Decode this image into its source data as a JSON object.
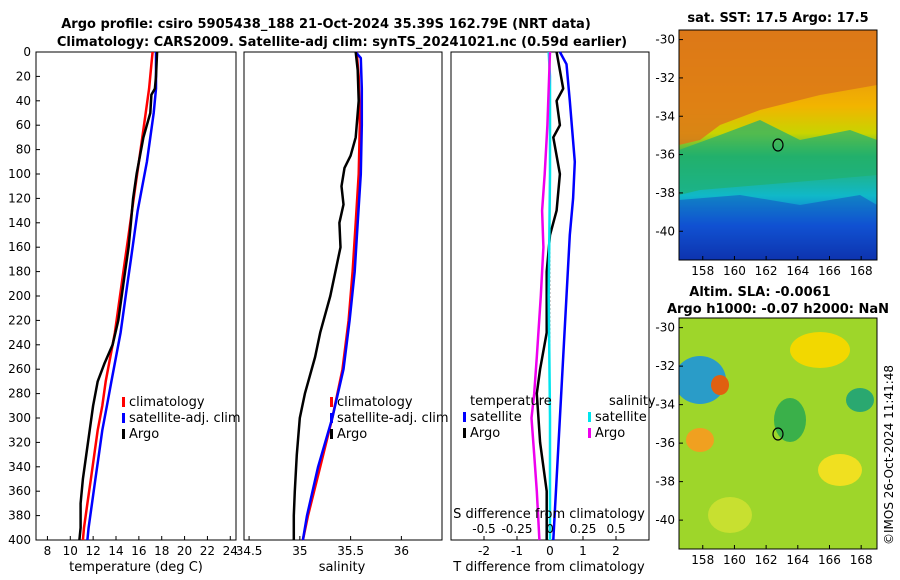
{
  "header": {
    "title_line1": "Argo profile: csiro 5905438_188 21-Oct-2024 35.39S 162.79E (NRT data)",
    "title_line2": "Climatology: CARS2009. Satellite-adj clim: synTS_20241021.nc (0.59d earlier)"
  },
  "map_titles": {
    "sst": "sat. SST: 17.5 Argo: 17.5",
    "sla_line1": "Altim. SLA: -0.0061",
    "sla_line2": "Argo h1000: -0.07 h2000: NaN"
  },
  "watermark": "©IMOS 26-Oct-2024 11:41:48",
  "colors": {
    "climatology": "#ff0000",
    "satellite": "#0000ff",
    "argo": "#000000",
    "sat_salinity": "#00e5ee",
    "argo_salinity": "#ee00ee"
  },
  "chart_data": [
    {
      "type": "line",
      "name": "temperature",
      "xlabel": "temperature (deg C)",
      "ylabel": "",
      "xlim": [
        7,
        24.5
      ],
      "ylim": [
        400,
        0
      ],
      "xticks": [
        "8",
        "10",
        "12",
        "14",
        "16",
        "18",
        "20",
        "22",
        "24"
      ],
      "yticks": [
        "0",
        "20",
        "40",
        "60",
        "80",
        "100",
        "120",
        "140",
        "160",
        "180",
        "200",
        "220",
        "240",
        "260",
        "280",
        "300",
        "320",
        "340",
        "360",
        "380",
        "400"
      ],
      "legend": [
        "climatology",
        "satellite-adj. clim",
        "Argo"
      ],
      "series": [
        {
          "name": "climatology",
          "points": [
            [
              17.2,
              0
            ],
            [
              17.1,
              10
            ],
            [
              16.9,
              30
            ],
            [
              16.6,
              50
            ],
            [
              16.3,
              70
            ],
            [
              16.0,
              90
            ],
            [
              15.7,
              110
            ],
            [
              15.4,
              130
            ],
            [
              15.1,
              150
            ],
            [
              14.8,
              170
            ],
            [
              14.5,
              190
            ],
            [
              14.2,
              210
            ],
            [
              13.9,
              230
            ],
            [
              13.5,
              250
            ],
            [
              13.1,
              270
            ],
            [
              12.8,
              290
            ],
            [
              12.4,
              310
            ],
            [
              12.1,
              330
            ],
            [
              11.8,
              350
            ],
            [
              11.5,
              370
            ],
            [
              11.2,
              390
            ],
            [
              11.1,
              400
            ]
          ]
        },
        {
          "name": "satellite-adj. clim",
          "points": [
            [
              17.5,
              0
            ],
            [
              17.5,
              10
            ],
            [
              17.5,
              30
            ],
            [
              17.3,
              50
            ],
            [
              17.0,
              70
            ],
            [
              16.7,
              90
            ],
            [
              16.3,
              110
            ],
            [
              15.9,
              130
            ],
            [
              15.6,
              150
            ],
            [
              15.3,
              170
            ],
            [
              15.0,
              190
            ],
            [
              14.7,
              210
            ],
            [
              14.4,
              230
            ],
            [
              14.0,
              250
            ],
            [
              13.6,
              270
            ],
            [
              13.2,
              290
            ],
            [
              12.8,
              310
            ],
            [
              12.5,
              330
            ],
            [
              12.2,
              350
            ],
            [
              11.9,
              370
            ],
            [
              11.6,
              390
            ],
            [
              11.5,
              400
            ]
          ]
        },
        {
          "name": "Argo",
          "points": [
            [
              17.6,
              0
            ],
            [
              17.5,
              20
            ],
            [
              17.4,
              30
            ],
            [
              17.1,
              35
            ],
            [
              17.0,
              50
            ],
            [
              16.4,
              70
            ],
            [
              16.1,
              85
            ],
            [
              15.8,
              100
            ],
            [
              15.5,
              120
            ],
            [
              15.3,
              140
            ],
            [
              15.1,
              160
            ],
            [
              14.8,
              180
            ],
            [
              14.5,
              200
            ],
            [
              14.2,
              220
            ],
            [
              13.7,
              240
            ],
            [
              13.0,
              255
            ],
            [
              12.4,
              270
            ],
            [
              12.0,
              290
            ],
            [
              11.7,
              310
            ],
            [
              11.4,
              330
            ],
            [
              11.1,
              350
            ],
            [
              10.9,
              370
            ],
            [
              10.9,
              390
            ],
            [
              10.8,
              400
            ]
          ]
        }
      ]
    },
    {
      "type": "line",
      "name": "salinity",
      "xlabel": "salinity",
      "xlim": [
        34.45,
        36.4
      ],
      "ylim": [
        400,
        0
      ],
      "xticks": [
        "34.5",
        "35",
        "35.5",
        "36"
      ],
      "legend": [
        "climatology",
        "satellite-adj. clim",
        "Argo"
      ],
      "series": [
        {
          "name": "climatology",
          "points": [
            [
              35.56,
              0
            ],
            [
              35.58,
              20
            ],
            [
              35.59,
              60
            ],
            [
              35.58,
              100
            ],
            [
              35.55,
              140
            ],
            [
              35.52,
              180
            ],
            [
              35.48,
              220
            ],
            [
              35.42,
              260
            ],
            [
              35.32,
              300
            ],
            [
              35.2,
              340
            ],
            [
              35.08,
              380
            ],
            [
              35.03,
              400
            ]
          ]
        },
        {
          "name": "satellite-adj. clim",
          "points": [
            [
              35.55,
              0
            ],
            [
              35.6,
              5
            ],
            [
              35.61,
              30
            ],
            [
              35.61,
              60
            ],
            [
              35.6,
              100
            ],
            [
              35.57,
              140
            ],
            [
              35.54,
              180
            ],
            [
              35.49,
              220
            ],
            [
              35.43,
              260
            ],
            [
              35.32,
              300
            ],
            [
              35.18,
              340
            ],
            [
              35.07,
              380
            ],
            [
              35.03,
              400
            ]
          ]
        },
        {
          "name": "Argo",
          "points": [
            [
              35.55,
              0
            ],
            [
              35.57,
              15
            ],
            [
              35.58,
              40
            ],
            [
              35.55,
              70
            ],
            [
              35.5,
              85
            ],
            [
              35.44,
              95
            ],
            [
              35.41,
              110
            ],
            [
              35.43,
              125
            ],
            [
              35.39,
              140
            ],
            [
              35.4,
              160
            ],
            [
              35.35,
              180
            ],
            [
              35.3,
              200
            ],
            [
              35.2,
              230
            ],
            [
              35.15,
              250
            ],
            [
              35.05,
              280
            ],
            [
              35.0,
              300
            ],
            [
              34.97,
              330
            ],
            [
              34.95,
              360
            ],
            [
              34.94,
              380
            ],
            [
              34.94,
              400
            ]
          ]
        }
      ]
    },
    {
      "type": "line",
      "name": "differences",
      "xlabel": "T difference from climatology",
      "xlabel_top": "S difference from climatology",
      "xlim": [
        -3,
        3
      ],
      "ylim": [
        400,
        0
      ],
      "xticks": [
        "-2",
        "-1",
        "0",
        "1",
        "2"
      ],
      "xticks_top": [
        "-0.5",
        "-0.25",
        "0",
        "0.25",
        "0.5"
      ],
      "legend_titles": [
        "temperature",
        "salinity"
      ],
      "legend": [
        "satellite",
        "Argo",
        "satellite",
        "Argo"
      ],
      "series": [
        {
          "name": "T satellite",
          "points": [
            [
              0.3,
              0
            ],
            [
              0.5,
              10
            ],
            [
              0.6,
              40
            ],
            [
              0.75,
              90
            ],
            [
              0.7,
              120
            ],
            [
              0.6,
              150
            ],
            [
              0.5,
              200
            ],
            [
              0.4,
              250
            ],
            [
              0.3,
              300
            ],
            [
              0.2,
              350
            ],
            [
              0.1,
              400
            ]
          ]
        },
        {
          "name": "T Argo",
          "points": [
            [
              0.2,
              0
            ],
            [
              0.4,
              30
            ],
            [
              0.2,
              40
            ],
            [
              0.3,
              60
            ],
            [
              0.1,
              70
            ],
            [
              0.3,
              100
            ],
            [
              0.2,
              130
            ],
            [
              0.0,
              150
            ],
            [
              -0.1,
              180
            ],
            [
              -0.1,
              230
            ],
            [
              -0.3,
              260
            ],
            [
              -0.4,
              280
            ],
            [
              -0.3,
              320
            ],
            [
              -0.1,
              360
            ],
            [
              -0.1,
              400
            ]
          ]
        },
        {
          "name": "S satellite",
          "points": [
            [
              -0.01,
              0
            ],
            [
              0,
              20
            ],
            [
              0,
              100
            ],
            [
              -0.01,
              200
            ],
            [
              0,
              300
            ],
            [
              0,
              400
            ]
          ]
        },
        {
          "name": "S Argo",
          "points": [
            [
              0,
              0
            ],
            [
              -0.02,
              60
            ],
            [
              -0.04,
              100
            ],
            [
              -0.06,
              130
            ],
            [
              -0.05,
              160
            ],
            [
              -0.07,
              200
            ],
            [
              -0.1,
              250
            ],
            [
              -0.12,
              280
            ],
            [
              -0.14,
              300
            ],
            [
              -0.12,
              330
            ],
            [
              -0.1,
              360
            ],
            [
              -0.08,
              400
            ]
          ]
        }
      ]
    },
    {
      "type": "heatmap",
      "name": "sst_map",
      "title": "sat. SST: 17.5 Argo: 17.5",
      "xlim": [
        156.5,
        169
      ],
      "ylim": [
        -41.5,
        -29.5
      ],
      "xticks": [
        "158",
        "160",
        "162",
        "164",
        "166",
        "168"
      ],
      "yticks": [
        "-30",
        "-32",
        "-34",
        "-36",
        "-38",
        "-40"
      ],
      "argo_position": [
        162.79,
        -35.39
      ]
    },
    {
      "type": "heatmap",
      "name": "sla_map",
      "title": "Altim. SLA: -0.0061",
      "xlim": [
        156.5,
        169
      ],
      "ylim": [
        -41.5,
        -29.5
      ],
      "xticks": [
        "158",
        "160",
        "162",
        "164",
        "166",
        "168"
      ],
      "yticks": [
        "-30",
        "-32",
        "-34",
        "-36",
        "-38",
        "-40"
      ],
      "argo_position": [
        162.79,
        -35.39
      ]
    }
  ]
}
